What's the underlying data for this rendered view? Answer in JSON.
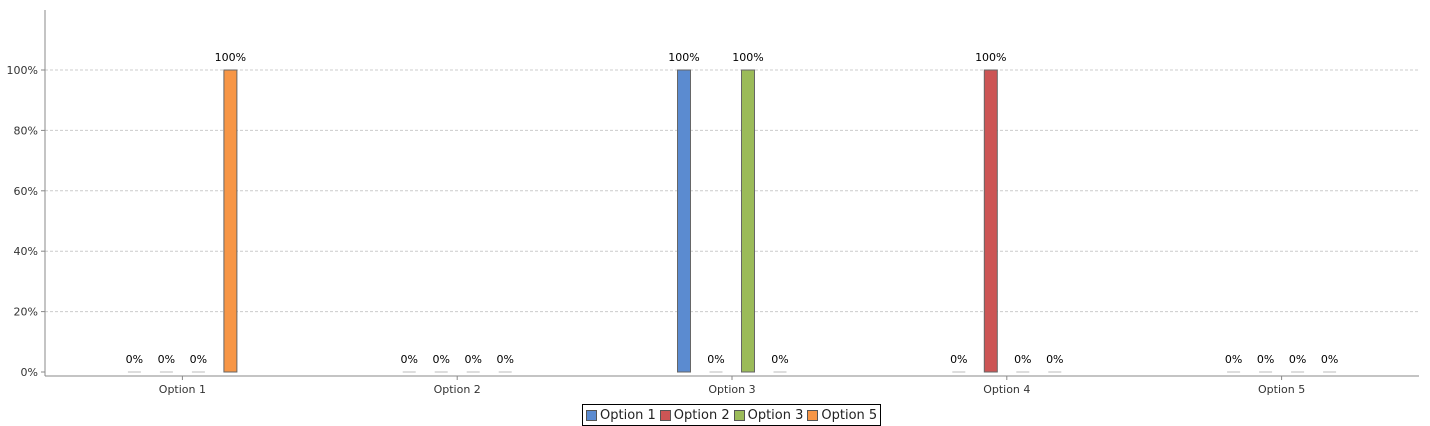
{
  "chart_data": {
    "type": "bar",
    "categories": [
      "Option 1",
      "Option 2",
      "Option 3",
      "Option 4",
      "Option 5"
    ],
    "series": [
      {
        "name": "Option 1",
        "color": "#5b8bd0",
        "values": [
          0,
          0,
          100,
          0,
          0
        ]
      },
      {
        "name": "Option 2",
        "color": "#cc5555",
        "values": [
          0,
          0,
          0,
          100,
          0
        ]
      },
      {
        "name": "Option 3",
        "color": "#9bbb59",
        "values": [
          0,
          0,
          100,
          0,
          0
        ]
      },
      {
        "name": "Option 5",
        "color": "#f79646",
        "values": [
          100,
          0,
          0,
          0,
          0
        ]
      }
    ],
    "ylim": [
      0,
      100
    ],
    "yticks": [
      "0%",
      "20%",
      "40%",
      "60%",
      "80%",
      "100%"
    ],
    "value_suffix": "%",
    "grid": true,
    "legend": "bottom-center"
  }
}
